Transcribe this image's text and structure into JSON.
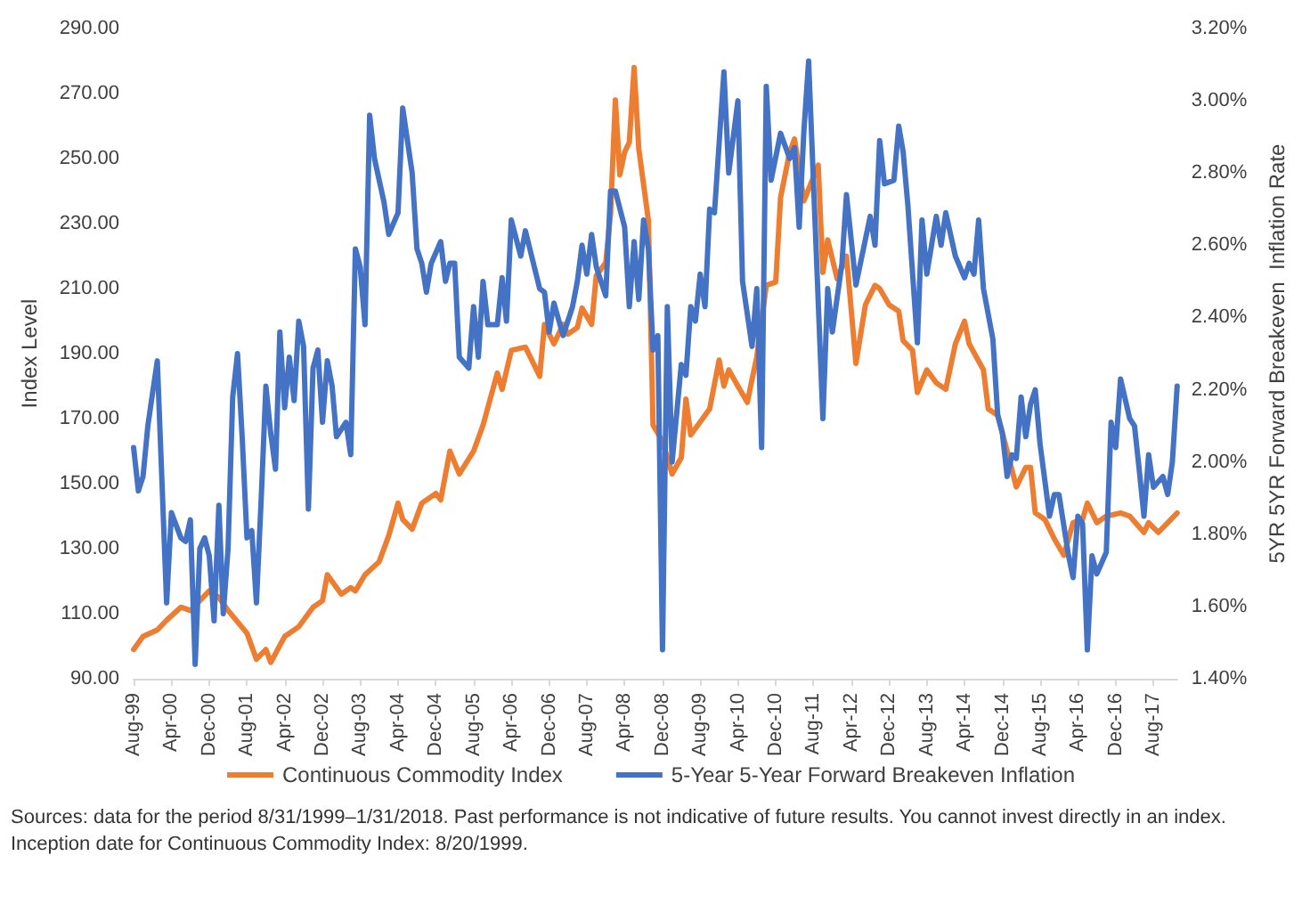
{
  "chart_data": {
    "type": "line",
    "ylabel": "Index Level",
    "y2label": "5YR 5YR Forward Breakeven  Inflation Rate",
    "annotations": [
      "Sources: data for the period 8/31/1999–1/31/2018. Past performance is not indicative of future results. You cannot invest directly in an index. Inception date for Continuous Commodity Index: 8/20/1999."
    ],
    "xlim": [
      "1999-08",
      "2018-01"
    ],
    "xticks": [
      {
        "value": "1999-08",
        "label": "Aug-99"
      },
      {
        "value": "2000-04",
        "label": "Apr-00"
      },
      {
        "value": "2000-12",
        "label": "Dec-00"
      },
      {
        "value": "2001-08",
        "label": "Aug-01"
      },
      {
        "value": "2002-04",
        "label": "Apr-02"
      },
      {
        "value": "2002-12",
        "label": "Dec-02"
      },
      {
        "value": "2003-08",
        "label": "Aug-03"
      },
      {
        "value": "2004-04",
        "label": "Apr-04"
      },
      {
        "value": "2004-12",
        "label": "Dec-04"
      },
      {
        "value": "2005-08",
        "label": "Aug-05"
      },
      {
        "value": "2006-04",
        "label": "Apr-06"
      },
      {
        "value": "2006-12",
        "label": "Dec-06"
      },
      {
        "value": "2007-08",
        "label": "Aug-07"
      },
      {
        "value": "2008-04",
        "label": "Apr-08"
      },
      {
        "value": "2008-12",
        "label": "Dec-08"
      },
      {
        "value": "2009-08",
        "label": "Aug-09"
      },
      {
        "value": "2010-04",
        "label": "Apr-10"
      },
      {
        "value": "2010-12",
        "label": "Dec-10"
      },
      {
        "value": "2011-08",
        "label": "Aug-11"
      },
      {
        "value": "2012-04",
        "label": "Apr-12"
      },
      {
        "value": "2012-12",
        "label": "Dec-12"
      },
      {
        "value": "2013-08",
        "label": "Aug-13"
      },
      {
        "value": "2014-04",
        "label": "Apr-14"
      },
      {
        "value": "2014-12",
        "label": "Dec-14"
      },
      {
        "value": "2015-08",
        "label": "Aug-15"
      },
      {
        "value": "2016-04",
        "label": "Apr-16"
      },
      {
        "value": "2016-12",
        "label": "Dec-16"
      },
      {
        "value": "2017-08",
        "label": "Aug-17"
      }
    ],
    "ylim": [
      90,
      290
    ],
    "yticks": [
      {
        "value": 90,
        "label": "90.00"
      },
      {
        "value": 110,
        "label": "110.00"
      },
      {
        "value": 130,
        "label": "130.00"
      },
      {
        "value": 150,
        "label": "150.00"
      },
      {
        "value": 170,
        "label": "170.00"
      },
      {
        "value": 190,
        "label": "190.00"
      },
      {
        "value": 210,
        "label": "210.00"
      },
      {
        "value": 230,
        "label": "230.00"
      },
      {
        "value": 250,
        "label": "250.00"
      },
      {
        "value": 270,
        "label": "270.00"
      },
      {
        "value": 290,
        "label": "290.00"
      }
    ],
    "y2lim": [
      1.4,
      3.2
    ],
    "y2ticks": [
      {
        "value": 1.4,
        "label": "1.40%"
      },
      {
        "value": 1.6,
        "label": "1.60%"
      },
      {
        "value": 1.8,
        "label": "1.80%"
      },
      {
        "value": 2.0,
        "label": "2.00%"
      },
      {
        "value": 2.2,
        "label": "2.20%"
      },
      {
        "value": 2.4,
        "label": "2.40%"
      },
      {
        "value": 2.6,
        "label": "2.60%"
      },
      {
        "value": 2.8,
        "label": "2.80%"
      },
      {
        "value": 3.0,
        "label": "3.00%"
      },
      {
        "value": 3.2,
        "label": "3.20%"
      }
    ],
    "grid": false,
    "legend": "bottom",
    "marker": "none",
    "line_style": "solid",
    "series": [
      {
        "name": "Continuous Commodity Index",
        "color": "#ed7d31",
        "x": [
          "1999-08",
          "1999-10",
          "2000-01",
          "2000-03",
          "2000-06",
          "2000-08",
          "2000-12",
          "2001-02",
          "2001-04",
          "2001-08",
          "2001-10",
          "2001-12",
          "2002-01",
          "2002-04",
          "2002-07",
          "2002-10",
          "2002-12",
          "2003-01",
          "2003-04",
          "2003-06",
          "2003-07",
          "2003-09",
          "2003-12",
          "2004-02",
          "2004-04",
          "2004-05",
          "2004-07",
          "2004-09",
          "2004-12",
          "2005-01",
          "2005-03",
          "2005-05",
          "2005-08",
          "2005-10",
          "2006-01",
          "2006-02",
          "2006-04",
          "2006-07",
          "2006-08",
          "2006-10",
          "2006-11",
          "2007-01",
          "2007-03",
          "2007-04",
          "2007-06",
          "2007-07",
          "2007-09",
          "2007-10",
          "2007-12",
          "2008-01",
          "2008-02",
          "2008-03",
          "2008-04",
          "2008-05",
          "2008-06",
          "2008-07",
          "2008-09",
          "2008-10",
          "2008-12",
          "2009-02",
          "2009-04",
          "2009-05",
          "2009-06",
          "2009-08",
          "2009-10",
          "2009-12",
          "2010-01",
          "2010-02",
          "2010-04",
          "2010-06",
          "2010-07",
          "2010-08",
          "2010-10",
          "2010-12",
          "2011-01",
          "2011-03",
          "2011-04",
          "2011-06",
          "2011-09",
          "2011-10",
          "2011-11",
          "2012-01",
          "2012-03",
          "2012-05",
          "2012-07",
          "2012-09",
          "2012-10",
          "2012-12",
          "2013-02",
          "2013-03",
          "2013-05",
          "2013-06",
          "2013-08",
          "2013-10",
          "2013-12",
          "2014-02",
          "2014-04",
          "2014-05",
          "2014-08",
          "2014-09",
          "2014-11",
          "2015-01",
          "2015-03",
          "2015-05",
          "2015-06",
          "2015-07",
          "2015-09",
          "2015-11",
          "2016-01",
          "2016-03",
          "2016-05",
          "2016-06",
          "2016-08",
          "2016-10",
          "2017-01",
          "2017-03",
          "2017-06",
          "2017-07",
          "2017-09",
          "2017-11",
          "2018-01"
        ],
        "values": [
          99,
          103,
          105,
          108,
          112,
          111,
          117,
          115,
          111,
          104,
          96,
          99,
          95,
          103,
          106,
          112,
          114,
          122,
          116,
          118,
          117,
          122,
          126,
          134,
          144,
          139,
          136,
          144,
          147,
          145,
          160,
          153,
          160,
          168,
          184,
          179,
          191,
          192,
          189,
          183,
          199,
          193,
          199,
          196,
          198,
          204,
          199,
          214,
          218,
          233,
          268,
          245,
          252,
          255,
          278,
          253,
          231,
          168,
          163,
          153,
          158,
          176,
          165,
          169,
          173,
          188,
          180,
          185,
          180,
          175,
          182,
          189,
          211,
          212,
          238,
          252,
          256,
          237,
          248,
          215,
          225,
          213,
          220,
          187,
          205,
          211,
          210,
          205,
          203,
          194,
          191,
          178,
          185,
          181,
          179,
          193,
          200,
          193,
          185,
          173,
          171,
          160,
          149,
          155,
          155,
          141,
          139,
          133,
          128,
          138,
          139,
          144,
          138,
          140,
          141,
          140,
          135,
          138,
          135,
          138,
          141
        ]
      },
      {
        "name": "5-Year 5-Year Forward Breakeven Inflation",
        "color": "#4472c4",
        "axis": "y2",
        "x": [
          "1999-08",
          "1999-09",
          "1999-10",
          "1999-11",
          "1999-12",
          "2000-01",
          "2000-03",
          "2000-04",
          "2000-06",
          "2000-07",
          "2000-08",
          "2000-09",
          "2000-10",
          "2000-11",
          "2000-12",
          "2001-01",
          "2001-02",
          "2001-03",
          "2001-04",
          "2001-05",
          "2001-06",
          "2001-07",
          "2001-08",
          "2001-09",
          "2001-10",
          "2001-11",
          "2001-12",
          "2002-01",
          "2002-02",
          "2002-03",
          "2002-04",
          "2002-05",
          "2002-06",
          "2002-07",
          "2002-08",
          "2002-09",
          "2002-10",
          "2002-11",
          "2002-12",
          "2003-01",
          "2003-02",
          "2003-03",
          "2003-05",
          "2003-06",
          "2003-07",
          "2003-08",
          "2003-09",
          "2003-10",
          "2003-11",
          "2004-01",
          "2004-02",
          "2004-04",
          "2004-05",
          "2004-07",
          "2004-08",
          "2004-09",
          "2004-10",
          "2004-11",
          "2005-01",
          "2005-02",
          "2005-03",
          "2005-04",
          "2005-05",
          "2005-07",
          "2005-08",
          "2005-09",
          "2005-10",
          "2005-11",
          "2006-01",
          "2006-02",
          "2006-03",
          "2006-04",
          "2006-06",
          "2006-07",
          "2006-10",
          "2006-11",
          "2006-12",
          "2007-01",
          "2007-03",
          "2007-05",
          "2007-06",
          "2007-07",
          "2007-08",
          "2007-09",
          "2007-10",
          "2007-12",
          "2008-01",
          "2008-02",
          "2008-04",
          "2008-05",
          "2008-06",
          "2008-07",
          "2008-08",
          "2008-09",
          "2008-10",
          "2008-11",
          "2008-12",
          "2009-01",
          "2009-02",
          "2009-04",
          "2009-05",
          "2009-06",
          "2009-07",
          "2009-08",
          "2009-09",
          "2009-10",
          "2009-11",
          "2010-01",
          "2010-02",
          "2010-04",
          "2010-05",
          "2010-07",
          "2010-08",
          "2010-09",
          "2010-10",
          "2010-11",
          "2011-01",
          "2011-03",
          "2011-04",
          "2011-05",
          "2011-06",
          "2011-07",
          "2011-10",
          "2011-11",
          "2011-12",
          "2012-02",
          "2012-03",
          "2012-05",
          "2012-08",
          "2012-09",
          "2012-10",
          "2012-11",
          "2013-01",
          "2013-02",
          "2013-03",
          "2013-04",
          "2013-06",
          "2013-07",
          "2013-08",
          "2013-10",
          "2013-11",
          "2013-12",
          "2014-02",
          "2014-04",
          "2014-05",
          "2014-06",
          "2014-07",
          "2014-08",
          "2014-10",
          "2014-11",
          "2014-12",
          "2015-01",
          "2015-02",
          "2015-03",
          "2015-04",
          "2015-05",
          "2015-06",
          "2015-07",
          "2015-08",
          "2015-10",
          "2015-11",
          "2015-12",
          "2016-02",
          "2016-03",
          "2016-04",
          "2016-05",
          "2016-06",
          "2016-07",
          "2016-08",
          "2016-10",
          "2016-11",
          "2016-12",
          "2017-01",
          "2017-03",
          "2017-04",
          "2017-05",
          "2017-06",
          "2017-07",
          "2017-08",
          "2017-10",
          "2017-11",
          "2017-12",
          "2018-01"
        ],
        "values": [
          2.04,
          1.92,
          1.96,
          2.1,
          2.19,
          2.28,
          1.61,
          1.86,
          1.79,
          1.78,
          1.84,
          1.44,
          1.76,
          1.79,
          1.74,
          1.56,
          1.88,
          1.58,
          1.76,
          2.18,
          2.3,
          2.07,
          1.79,
          1.81,
          1.61,
          1.9,
          2.21,
          2.08,
          1.98,
          2.36,
          2.15,
          2.29,
          2.17,
          2.39,
          2.32,
          1.87,
          2.26,
          2.31,
          2.11,
          2.28,
          2.21,
          2.07,
          2.11,
          2.02,
          2.59,
          2.54,
          2.38,
          2.96,
          2.84,
          2.72,
          2.63,
          2.69,
          2.98,
          2.8,
          2.59,
          2.55,
          2.47,
          2.55,
          2.61,
          2.5,
          2.55,
          2.55,
          2.29,
          2.26,
          2.43,
          2.29,
          2.5,
          2.38,
          2.38,
          2.51,
          2.39,
          2.67,
          2.57,
          2.64,
          2.48,
          2.47,
          2.36,
          2.44,
          2.35,
          2.43,
          2.5,
          2.6,
          2.52,
          2.63,
          2.54,
          2.46,
          2.75,
          2.75,
          2.65,
          2.43,
          2.61,
          2.45,
          2.67,
          2.59,
          2.31,
          2.35,
          1.48,
          2.43,
          2.0,
          2.27,
          2.24,
          2.43,
          2.39,
          2.52,
          2.43,
          2.7,
          2.69,
          3.08,
          2.8,
          3.0,
          2.5,
          2.32,
          2.48,
          2.04,
          3.04,
          2.78,
          2.91,
          2.84,
          2.87,
          2.65,
          2.92,
          3.11,
          2.12,
          2.48,
          2.36,
          2.55,
          2.74,
          2.49,
          2.68,
          2.6,
          2.89,
          2.77,
          2.78,
          2.93,
          2.86,
          2.71,
          2.33,
          2.67,
          2.52,
          2.68,
          2.6,
          2.69,
          2.57,
          2.51,
          2.55,
          2.52,
          2.67,
          2.48,
          2.34,
          2.13,
          2.08,
          1.96,
          2.02,
          2.01,
          2.18,
          2.07,
          2.16,
          2.2,
          2.05,
          1.85,
          1.91,
          1.91,
          1.74,
          1.68,
          1.85,
          1.83,
          1.48,
          1.74,
          1.69,
          1.75,
          2.11,
          2.04,
          2.23,
          2.12,
          2.1,
          1.98,
          1.85,
          2.02,
          1.93,
          1.96,
          1.91,
          2.0,
          2.21
        ]
      }
    ]
  }
}
